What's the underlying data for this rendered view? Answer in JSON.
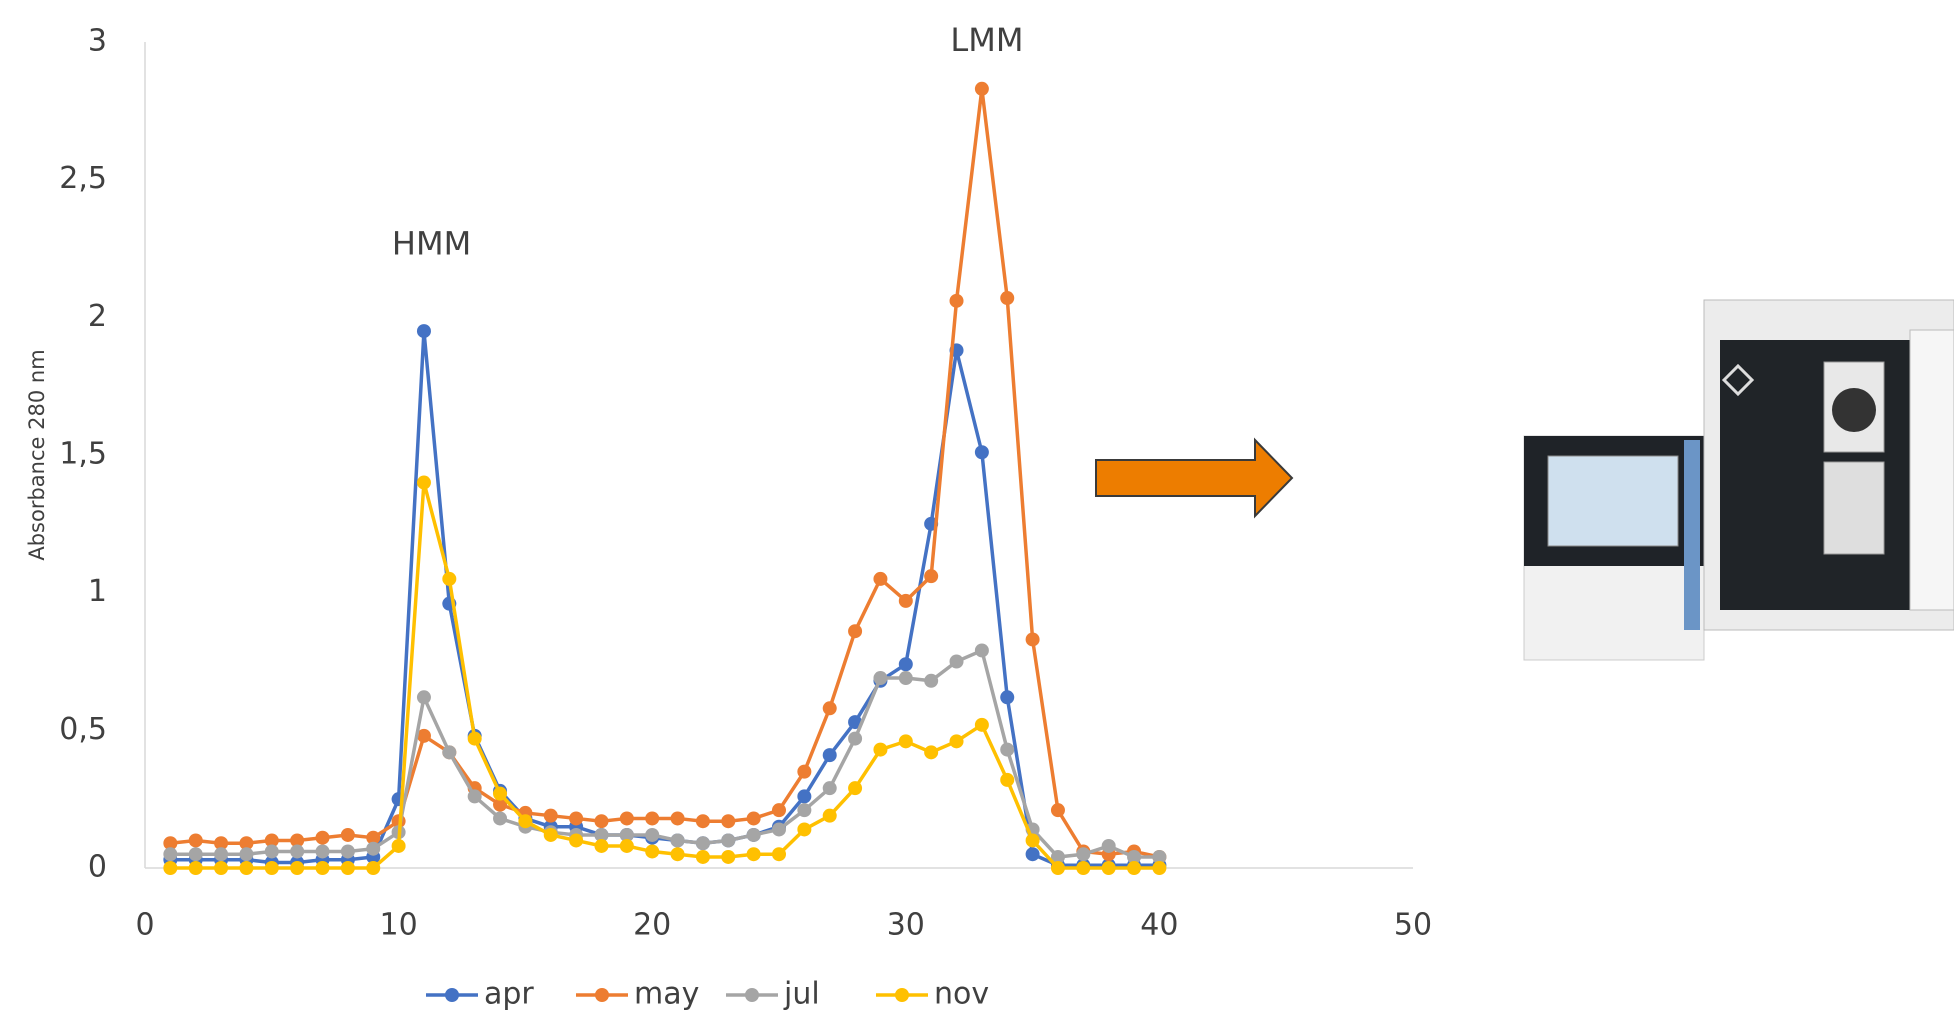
{
  "chart_data": {
    "type": "line",
    "y_label": "Absorbance 280 nm",
    "x": [
      1,
      2,
      3,
      4,
      5,
      6,
      7,
      8,
      9,
      10,
      11,
      12,
      13,
      14,
      15,
      16,
      17,
      18,
      19,
      20,
      21,
      22,
      23,
      24,
      25,
      26,
      27,
      28,
      29,
      30,
      31,
      32,
      33,
      34,
      35,
      36,
      37,
      38,
      39,
      40
    ],
    "series": [
      {
        "name": "apr",
        "color": "#4472c4",
        "values": [
          0.03,
          0.03,
          0.03,
          0.03,
          0.02,
          0.02,
          0.03,
          0.03,
          0.04,
          0.25,
          1.95,
          0.96,
          0.48,
          0.28,
          0.18,
          0.15,
          0.15,
          0.12,
          0.12,
          0.11,
          0.1,
          0.09,
          0.1,
          0.12,
          0.15,
          0.26,
          0.41,
          0.53,
          0.68,
          0.74,
          1.25,
          1.88,
          1.51,
          0.62,
          0.05,
          0.01,
          0.01,
          0.01,
          0.01,
          0.01
        ]
      },
      {
        "name": "may",
        "color": "#ed7d31",
        "values": [
          0.09,
          0.1,
          0.09,
          0.09,
          0.1,
          0.1,
          0.11,
          0.12,
          0.11,
          0.17,
          0.48,
          0.42,
          0.29,
          0.23,
          0.2,
          0.19,
          0.18,
          0.17,
          0.18,
          0.18,
          0.18,
          0.17,
          0.17,
          0.18,
          0.21,
          0.35,
          0.58,
          0.86,
          1.05,
          0.97,
          1.06,
          2.06,
          2.83,
          2.07,
          0.83,
          0.21,
          0.06,
          0.05,
          0.06,
          0.04
        ]
      },
      {
        "name": "jul",
        "color": "#a5a5a5",
        "values": [
          0.05,
          0.05,
          0.05,
          0.05,
          0.06,
          0.06,
          0.06,
          0.06,
          0.07,
          0.13,
          0.62,
          0.42,
          0.26,
          0.18,
          0.15,
          0.13,
          0.12,
          0.12,
          0.12,
          0.12,
          0.1,
          0.09,
          0.1,
          0.12,
          0.14,
          0.21,
          0.29,
          0.47,
          0.69,
          0.69,
          0.68,
          0.75,
          0.79,
          0.43,
          0.14,
          0.04,
          0.05,
          0.08,
          0.04,
          0.04
        ]
      },
      {
        "name": "nov",
        "color": "#ffc000",
        "values": [
          0,
          0,
          0,
          0,
          0,
          0,
          0,
          0,
          0,
          0.08,
          1.4,
          1.05,
          0.47,
          0.27,
          0.17,
          0.12,
          0.1,
          0.08,
          0.08,
          0.06,
          0.05,
          0.04,
          0.04,
          0.05,
          0.05,
          0.14,
          0.19,
          0.29,
          0.43,
          0.46,
          0.42,
          0.46,
          0.52,
          0.32,
          0.1,
          0,
          0,
          0,
          0,
          0
        ]
      }
    ],
    "annotations": [
      {
        "text": "HMM",
        "x": 11.3,
        "y": 2.26
      },
      {
        "text": "LMM",
        "x": 33.2,
        "y": 3.0
      }
    ],
    "xlim": [
      0,
      50
    ],
    "xticks": [
      0,
      10,
      20,
      30,
      40,
      50
    ],
    "ylim": [
      0,
      3
    ],
    "yticks": [
      0,
      {
        "value": 0.5,
        "label": "0,5"
      },
      1,
      {
        "value": 1.5,
        "label": "1,5"
      },
      2,
      {
        "value": 2.5,
        "label": "2,5"
      },
      3
    ],
    "grid": false,
    "legend": "bottom"
  }
}
